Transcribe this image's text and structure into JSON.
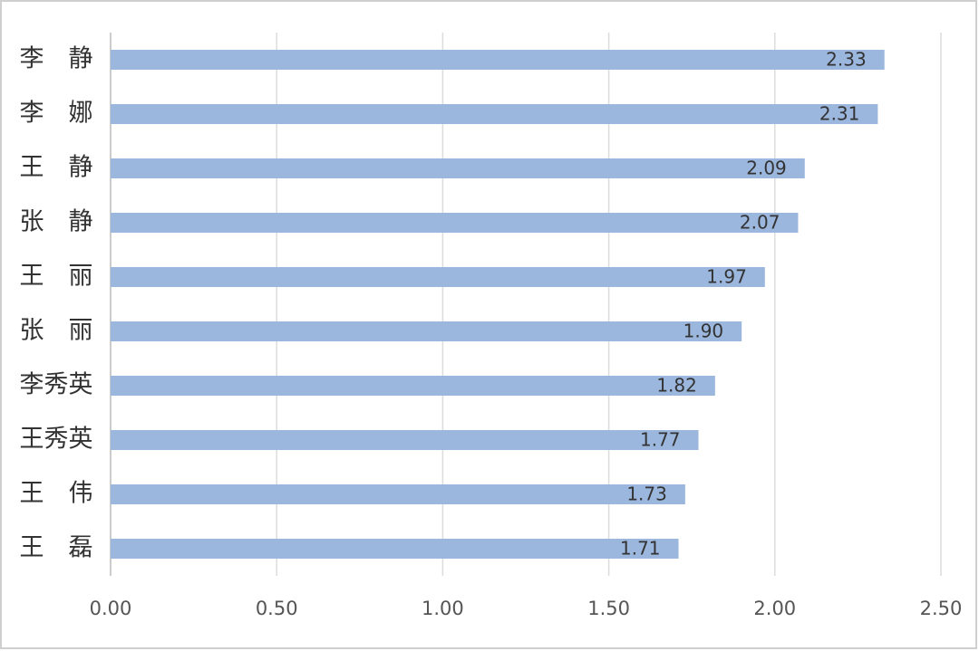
{
  "chart_data": {
    "type": "bar",
    "orientation": "horizontal",
    "categories": [
      "李　静",
      "李　娜",
      "王　静",
      "张　静",
      "王　丽",
      "张　丽",
      "李秀英",
      "王秀英",
      "王　伟",
      "王　磊"
    ],
    "values": [
      2.33,
      2.31,
      2.09,
      2.07,
      1.97,
      1.9,
      1.82,
      1.77,
      1.73,
      1.71
    ],
    "value_labels": [
      "2.33",
      "2.31",
      "2.09",
      "2.07",
      "1.97",
      "1.90",
      "1.82",
      "1.77",
      "1.73",
      "1.71"
    ],
    "color": "#9bb7de",
    "xlim": [
      0,
      2.5
    ],
    "xticks": [
      {
        "value": 0,
        "label": "0.00"
      },
      {
        "value": 0.5,
        "label": "0.50"
      },
      {
        "value": 1,
        "label": "1.00"
      },
      {
        "value": 1.5,
        "label": "1.50"
      },
      {
        "value": 2,
        "label": "2.00"
      },
      {
        "value": 2.5,
        "label": "2.50"
      }
    ],
    "grid": true
  }
}
